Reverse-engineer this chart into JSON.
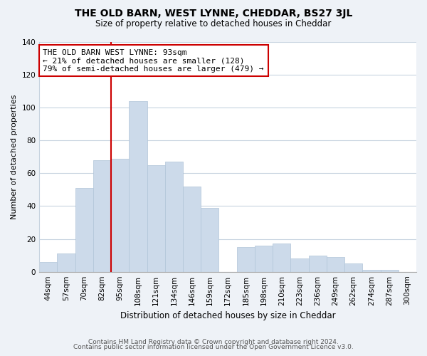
{
  "title": "THE OLD BARN, WEST LYNNE, CHEDDAR, BS27 3JL",
  "subtitle": "Size of property relative to detached houses in Cheddar",
  "xlabel": "Distribution of detached houses by size in Cheddar",
  "ylabel": "Number of detached properties",
  "footnote1": "Contains HM Land Registry data © Crown copyright and database right 2024.",
  "footnote2": "Contains public sector information licensed under the Open Government Licence v3.0.",
  "bar_color": "#ccdaea",
  "bar_edge_color": "#b0c4d8",
  "vline_color": "#cc0000",
  "vline_x_index": 4,
  "annotation_line1": "THE OLD BARN WEST LYNNE: 93sqm",
  "annotation_line2": "← 21% of detached houses are smaller (128)",
  "annotation_line3": "79% of semi-detached houses are larger (479) →",
  "annotation_box_color": "white",
  "annotation_box_edge": "#cc0000",
  "categories": [
    "44sqm",
    "57sqm",
    "70sqm",
    "82sqm",
    "95sqm",
    "108sqm",
    "121sqm",
    "134sqm",
    "146sqm",
    "159sqm",
    "172sqm",
    "185sqm",
    "198sqm",
    "210sqm",
    "223sqm",
    "236sqm",
    "249sqm",
    "262sqm",
    "274sqm",
    "287sqm",
    "300sqm"
  ],
  "values": [
    6,
    11,
    51,
    68,
    69,
    104,
    65,
    67,
    52,
    39,
    0,
    15,
    16,
    17,
    8,
    10,
    9,
    5,
    1,
    1,
    0
  ],
  "ylim": [
    0,
    140
  ],
  "yticks": [
    0,
    20,
    40,
    60,
    80,
    100,
    120,
    140
  ],
  "background_color": "#eef2f7",
  "plot_bg_color": "#ffffff",
  "grid_color": "#c8d4e0",
  "title_fontsize": 10,
  "subtitle_fontsize": 8.5,
  "xlabel_fontsize": 8.5,
  "ylabel_fontsize": 8,
  "footnote_fontsize": 6.5,
  "tick_fontsize": 7.5,
  "annotation_fontsize": 8
}
